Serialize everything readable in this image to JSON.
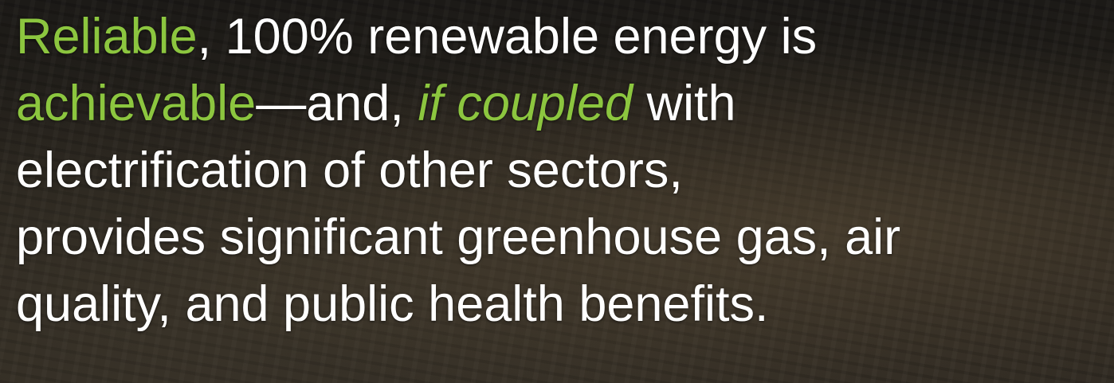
{
  "slide": {
    "lines": [
      {
        "segments": [
          {
            "text": "Reliable",
            "color": "#8cc63f"
          },
          {
            "text": ", 100% renewable energy is",
            "color": "#ffffff"
          }
        ]
      },
      {
        "segments": [
          {
            "text": "achievable",
            "color": "#8cc63f"
          },
          {
            "text": "—and, ",
            "color": "#ffffff"
          },
          {
            "text": "if coupled",
            "color": "#8cc63f",
            "italic": true
          },
          {
            "text": " with",
            "color": "#ffffff"
          }
        ]
      },
      {
        "segments": [
          {
            "text": "electrification of other sectors,",
            "color": "#ffffff"
          }
        ]
      },
      {
        "segments": [
          {
            "text": "provides significant greenhouse gas, air",
            "color": "#ffffff"
          }
        ]
      },
      {
        "segments": [
          {
            "text": "quality, and public health benefits.",
            "color": "#ffffff"
          }
        ]
      }
    ]
  }
}
